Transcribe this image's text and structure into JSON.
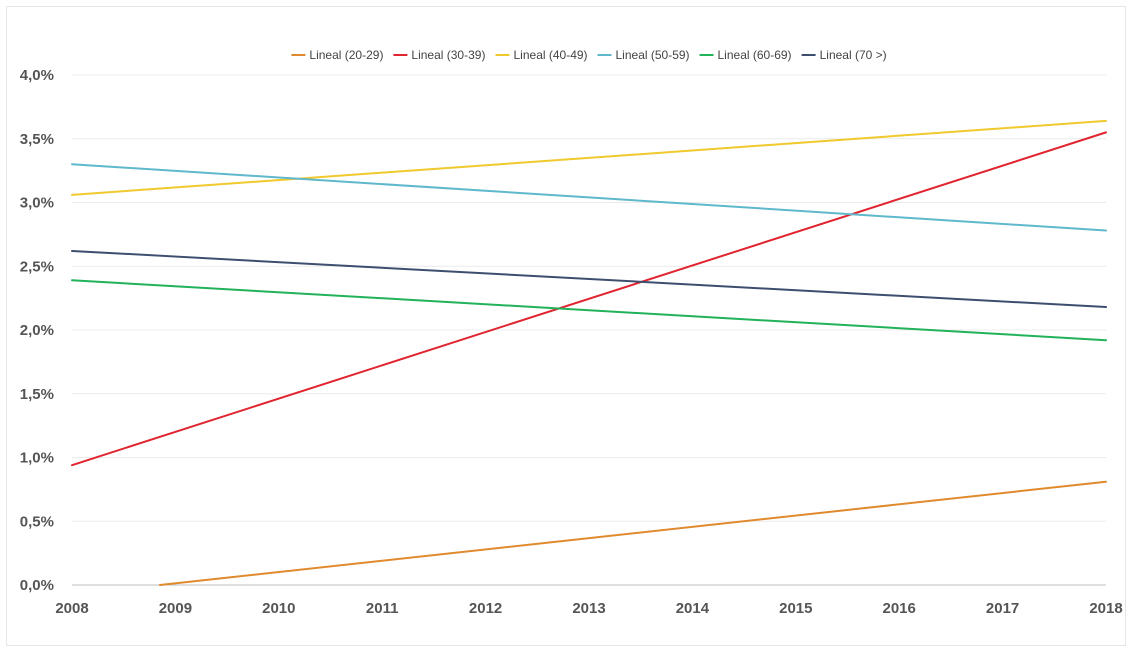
{
  "chart_data": {
    "type": "line",
    "title": "",
    "xlabel": "",
    "ylabel": "",
    "x": [
      2008,
      2009,
      2010,
      2011,
      2012,
      2013,
      2014,
      2015,
      2016,
      2017,
      2018
    ],
    "x_tick_labels": [
      "2008",
      "2009",
      "2010",
      "2011",
      "2012",
      "2013",
      "2014",
      "2015",
      "2016",
      "2017",
      "2018"
    ],
    "ylim": [
      0,
      4.0
    ],
    "y_ticks": [
      0,
      0.5,
      1.0,
      1.5,
      2.0,
      2.5,
      3.0,
      3.5,
      4.0
    ],
    "y_tick_labels": [
      "0,0%",
      "0,5%",
      "1,0%",
      "1,5%",
      "2,0%",
      "2,5%",
      "3,0%",
      "3,5%",
      "4,0%"
    ],
    "grid": "horizontal",
    "legend_position": "top",
    "series": [
      {
        "name": "Lineal (20-29)",
        "color": "#E08A2E",
        "points": [
          [
            2008.85,
            0.0
          ],
          [
            2018,
            0.81
          ]
        ]
      },
      {
        "name": "Lineal (30-39)",
        "color": "#E02530",
        "points": [
          [
            2008,
            0.94
          ],
          [
            2018,
            3.55
          ]
        ]
      },
      {
        "name": "Lineal (40-49)",
        "color": "#F0C92D",
        "points": [
          [
            2008,
            3.06
          ],
          [
            2018,
            3.64
          ]
        ]
      },
      {
        "name": "Lineal (50-59)",
        "color": "#5FB8CC",
        "points": [
          [
            2008,
            3.3
          ],
          [
            2018,
            2.78
          ]
        ]
      },
      {
        "name": "Lineal (60-69)",
        "color": "#22B25A",
        "points": [
          [
            2008,
            2.39
          ],
          [
            2018,
            1.92
          ]
        ]
      },
      {
        "name": "Lineal (70 >)",
        "color": "#3E4E6E",
        "points": [
          [
            2008,
            2.62
          ],
          [
            2018,
            2.18
          ]
        ]
      }
    ]
  }
}
